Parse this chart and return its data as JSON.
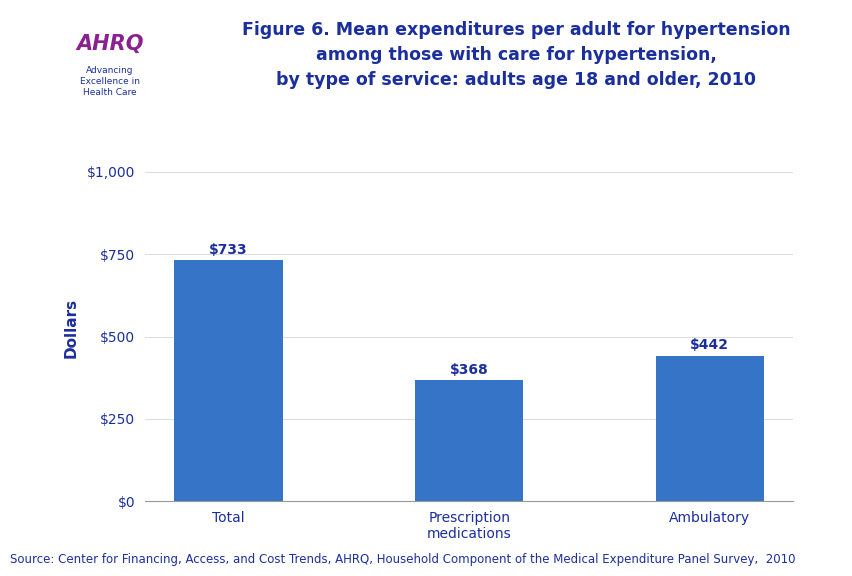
{
  "categories": [
    "Total",
    "Prescription\nmedications",
    "Ambulatory"
  ],
  "values": [
    733,
    368,
    442
  ],
  "bar_labels": [
    "$733",
    "$368",
    "$442"
  ],
  "bar_color": "#3674C8",
  "title_line1": "Figure 6. Mean expenditures per adult for hypertension",
  "title_line2": "among those with care for hypertension,",
  "title_line3": "by type of service: adults age 18 and older, 2010",
  "ylabel": "Dollars",
  "ytick_labels": [
    "$0",
    "$250",
    "$500",
    "$750",
    "$1,000"
  ],
  "ytick_values": [
    0,
    250,
    500,
    750,
    1000
  ],
  "ylim": [
    0,
    1000
  ],
  "source_text": "Source: Center for Financing, Access, and Cost Trends, AHRQ, Household Component of the Medical Expenditure Panel Survey,  2010",
  "title_color": "#1B2F9C",
  "bar_label_color": "#1B2F9C",
  "ylabel_color": "#1B2F9C",
  "tick_label_color": "#1B2F9C",
  "source_color": "#1B2F9C",
  "background_color": "#FFFFFF",
  "thick_line_color": "#00008B",
  "thin_line_color": "#3399DD",
  "logo_bg": "#2299BB",
  "logo_border": "#00008B",
  "ahrq_color": "#8B2090",
  "title_fontsize": 12.5,
  "bar_label_fontsize": 10,
  "ylabel_fontsize": 11,
  "tick_fontsize": 10,
  "source_fontsize": 8.5
}
